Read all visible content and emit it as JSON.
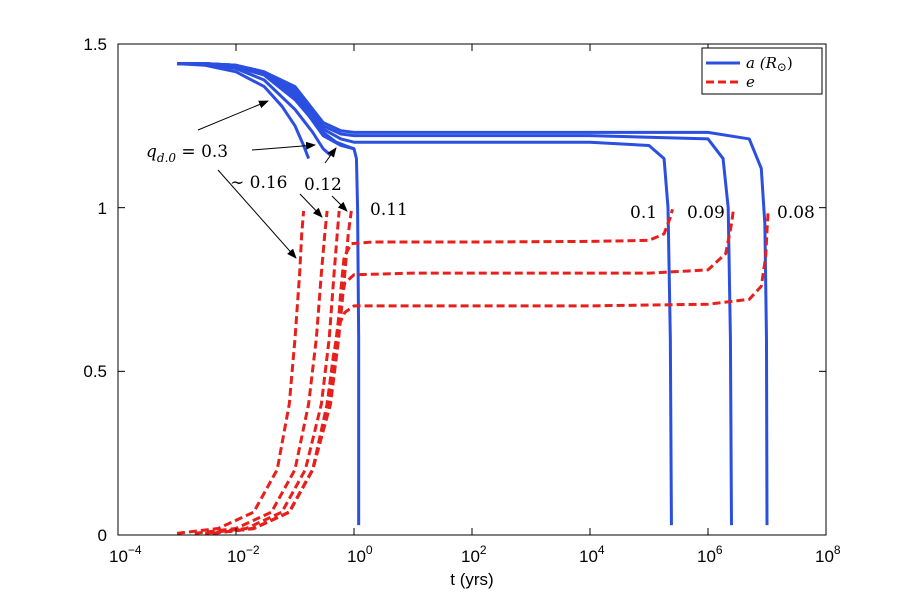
{
  "chart_data": {
    "type": "line",
    "title": "",
    "xlabel": "t (yrs)",
    "ylabel": "",
    "xscale": "log",
    "xlim": [
      0.0001,
      100000000
    ],
    "ylim": [
      0,
      1.5
    ],
    "x_ticks": [
      {
        "base": "10",
        "exp": "−4"
      },
      {
        "base": "10",
        "exp": "−2"
      },
      {
        "base": "10",
        "exp": "0"
      },
      {
        "base": "10",
        "exp": "2"
      },
      {
        "base": "10",
        "exp": "4"
      },
      {
        "base": "10",
        "exp": "6"
      },
      {
        "base": "10",
        "exp": "8"
      }
    ],
    "y_ticks": [
      "0",
      "0.5",
      "1",
      "1.5"
    ],
    "legend": {
      "position": "top-right",
      "entries": [
        {
          "label": "a (R",
          "sun": "⊙",
          "close": ")",
          "color": "#2b4fe0",
          "style": "solid"
        },
        {
          "label": "e",
          "color": "#e8201c",
          "style": "dashed"
        }
      ]
    },
    "series": [
      {
        "name": "a, q=0.3",
        "kind": "a",
        "color": "#2b4fe0",
        "points": [
          [
            0.001,
            1.44
          ],
          [
            0.003,
            1.435
          ],
          [
            0.01,
            1.415
          ],
          [
            0.03,
            1.37
          ],
          [
            0.06,
            1.31
          ],
          [
            0.1,
            1.25
          ],
          [
            0.14,
            1.19
          ],
          [
            0.17,
            1.15
          ]
        ]
      },
      {
        "name": "a, q=0.16",
        "kind": "a",
        "color": "#2b4fe0",
        "points": [
          [
            0.001,
            1.44
          ],
          [
            0.003,
            1.438
          ],
          [
            0.01,
            1.425
          ],
          [
            0.03,
            1.39
          ],
          [
            0.1,
            1.3
          ],
          [
            0.2,
            1.23
          ],
          [
            0.3,
            1.18
          ],
          [
            0.4,
            1.16
          ]
        ]
      },
      {
        "name": "a, q=0.12",
        "kind": "a",
        "color": "#2b4fe0",
        "points": [
          [
            0.001,
            1.44
          ],
          [
            0.003,
            1.438
          ],
          [
            0.01,
            1.43
          ],
          [
            0.03,
            1.405
          ],
          [
            0.1,
            1.33
          ],
          [
            0.3,
            1.23
          ],
          [
            0.5,
            1.2
          ],
          [
            0.7,
            1.19
          ],
          [
            1.0,
            1.18
          ]
        ]
      },
      {
        "name": "a, q=0.11",
        "kind": "a",
        "color": "#2b4fe0",
        "points": [
          [
            0.001,
            1.44
          ],
          [
            0.003,
            1.44
          ],
          [
            0.01,
            1.435
          ],
          [
            0.03,
            1.41
          ],
          [
            0.1,
            1.34
          ],
          [
            0.3,
            1.22
          ],
          [
            0.6,
            1.19
          ],
          [
            1.0,
            1.18
          ],
          [
            1.1,
            1.15
          ],
          [
            1.15,
            1.0
          ],
          [
            1.2,
            0.6
          ],
          [
            1.2,
            0.03
          ]
        ]
      },
      {
        "name": "a, q=0.1",
        "kind": "a",
        "color": "#2b4fe0",
        "points": [
          [
            0.001,
            1.44
          ],
          [
            0.003,
            1.44
          ],
          [
            0.01,
            1.435
          ],
          [
            0.03,
            1.41
          ],
          [
            0.1,
            1.35
          ],
          [
            0.3,
            1.24
          ],
          [
            0.6,
            1.21
          ],
          [
            1.0,
            1.2
          ],
          [
            10,
            1.2
          ],
          [
            10000,
            1.2
          ],
          [
            100000,
            1.19
          ],
          [
            180000,
            1.15
          ],
          [
            210000,
            1.0
          ],
          [
            230000,
            0.6
          ],
          [
            240000,
            0.03
          ]
        ]
      },
      {
        "name": "a, q=0.09",
        "kind": "a",
        "color": "#2b4fe0",
        "points": [
          [
            0.001,
            1.44
          ],
          [
            0.003,
            1.44
          ],
          [
            0.01,
            1.435
          ],
          [
            0.03,
            1.415
          ],
          [
            0.1,
            1.36
          ],
          [
            0.3,
            1.25
          ],
          [
            0.6,
            1.225
          ],
          [
            1.0,
            1.22
          ],
          [
            10,
            1.22
          ],
          [
            10000,
            1.22
          ],
          [
            1000000,
            1.21
          ],
          [
            1800000,
            1.15
          ],
          [
            2200000,
            1.0
          ],
          [
            2400000,
            0.6
          ],
          [
            2500000,
            0.03
          ]
        ]
      },
      {
        "name": "a, q=0.08",
        "kind": "a",
        "color": "#2b4fe0",
        "points": [
          [
            0.001,
            1.44
          ],
          [
            0.003,
            1.44
          ],
          [
            0.01,
            1.435
          ],
          [
            0.03,
            1.415
          ],
          [
            0.1,
            1.37
          ],
          [
            0.3,
            1.26
          ],
          [
            0.6,
            1.235
          ],
          [
            1.0,
            1.23
          ],
          [
            10,
            1.23
          ],
          [
            10000,
            1.23
          ],
          [
            1000000,
            1.23
          ],
          [
            5000000,
            1.21
          ],
          [
            8000000,
            1.12
          ],
          [
            9200000,
            0.95
          ],
          [
            9800000,
            0.6
          ],
          [
            10000000,
            0.03
          ]
        ]
      },
      {
        "name": "e, q=0.3",
        "kind": "e",
        "color": "#e8201c",
        "points": [
          [
            0.001,
            0.005
          ],
          [
            0.005,
            0.02
          ],
          [
            0.02,
            0.07
          ],
          [
            0.05,
            0.2
          ],
          [
            0.08,
            0.4
          ],
          [
            0.1,
            0.6
          ],
          [
            0.12,
            0.8
          ],
          [
            0.13,
            0.92
          ],
          [
            0.14,
            0.99
          ]
        ]
      },
      {
        "name": "e, q=0.16",
        "kind": "e",
        "color": "#e8201c",
        "points": [
          [
            0.002,
            0.005
          ],
          [
            0.01,
            0.02
          ],
          [
            0.04,
            0.07
          ],
          [
            0.1,
            0.2
          ],
          [
            0.17,
            0.4
          ],
          [
            0.23,
            0.6
          ],
          [
            0.28,
            0.8
          ],
          [
            0.32,
            0.92
          ],
          [
            0.35,
            0.99
          ]
        ]
      },
      {
        "name": "e, q=0.12",
        "kind": "e",
        "color": "#e8201c",
        "points": [
          [
            0.003,
            0.005
          ],
          [
            0.015,
            0.02
          ],
          [
            0.06,
            0.07
          ],
          [
            0.15,
            0.2
          ],
          [
            0.28,
            0.4
          ],
          [
            0.38,
            0.6
          ],
          [
            0.46,
            0.8
          ],
          [
            0.52,
            0.92
          ],
          [
            0.56,
            0.99
          ]
        ]
      },
      {
        "name": "e, q=0.11",
        "kind": "e",
        "color": "#e8201c",
        "points": [
          [
            0.004,
            0.005
          ],
          [
            0.02,
            0.02
          ],
          [
            0.08,
            0.07
          ],
          [
            0.2,
            0.2
          ],
          [
            0.4,
            0.4
          ],
          [
            0.55,
            0.6
          ],
          [
            0.7,
            0.8
          ],
          [
            0.8,
            0.92
          ],
          [
            0.9,
            0.99
          ]
        ]
      },
      {
        "name": "e, q=0.1",
        "kind": "e",
        "color": "#e8201c",
        "points": [
          [
            0.004,
            0.005
          ],
          [
            0.02,
            0.02
          ],
          [
            0.08,
            0.07
          ],
          [
            0.2,
            0.2
          ],
          [
            0.38,
            0.4
          ],
          [
            0.52,
            0.6
          ],
          [
            0.6,
            0.75
          ],
          [
            0.68,
            0.85
          ],
          [
            0.9,
            0.89
          ],
          [
            2,
            0.895
          ],
          [
            100,
            0.895
          ],
          [
            10000,
            0.897
          ],
          [
            100000,
            0.9
          ],
          [
            180000,
            0.92
          ],
          [
            230000,
            0.97
          ],
          [
            250000,
            0.995
          ]
        ]
      },
      {
        "name": "e, q=0.09",
        "kind": "e",
        "color": "#e8201c",
        "points": [
          [
            0.004,
            0.005
          ],
          [
            0.02,
            0.02
          ],
          [
            0.08,
            0.07
          ],
          [
            0.2,
            0.2
          ],
          [
            0.38,
            0.4
          ],
          [
            0.5,
            0.6
          ],
          [
            0.58,
            0.7
          ],
          [
            0.7,
            0.77
          ],
          [
            1.0,
            0.795
          ],
          [
            10,
            0.8
          ],
          [
            1000,
            0.8
          ],
          [
            100000,
            0.8
          ],
          [
            1000000,
            0.81
          ],
          [
            2000000,
            0.86
          ],
          [
            2500000,
            0.95
          ],
          [
            2700000,
            0.995
          ]
        ]
      },
      {
        "name": "e, q=0.08",
        "kind": "e",
        "color": "#e8201c",
        "points": [
          [
            0.004,
            0.005
          ],
          [
            0.02,
            0.02
          ],
          [
            0.08,
            0.07
          ],
          [
            0.2,
            0.2
          ],
          [
            0.35,
            0.4
          ],
          [
            0.45,
            0.55
          ],
          [
            0.55,
            0.64
          ],
          [
            0.7,
            0.68
          ],
          [
            1.0,
            0.7
          ],
          [
            10,
            0.7
          ],
          [
            10000,
            0.7
          ],
          [
            1000000,
            0.705
          ],
          [
            5000000,
            0.72
          ],
          [
            8000000,
            0.76
          ],
          [
            9500000,
            0.85
          ],
          [
            10000000,
            0.93
          ],
          [
            10500000,
            0.995
          ]
        ]
      }
    ],
    "annotations": [
      {
        "id": "q03",
        "q_base": "q",
        "q_sub": "d.0",
        "eq": " = 0.3"
      },
      {
        "id": "q016",
        "text": "∼ 0.16"
      },
      {
        "id": "q012",
        "text": "0.12"
      },
      {
        "id": "q011",
        "text": "0.11"
      },
      {
        "id": "q010",
        "text": "0.1"
      },
      {
        "id": "q009",
        "text": "0.09"
      },
      {
        "id": "q008",
        "text": "0.08"
      }
    ]
  }
}
